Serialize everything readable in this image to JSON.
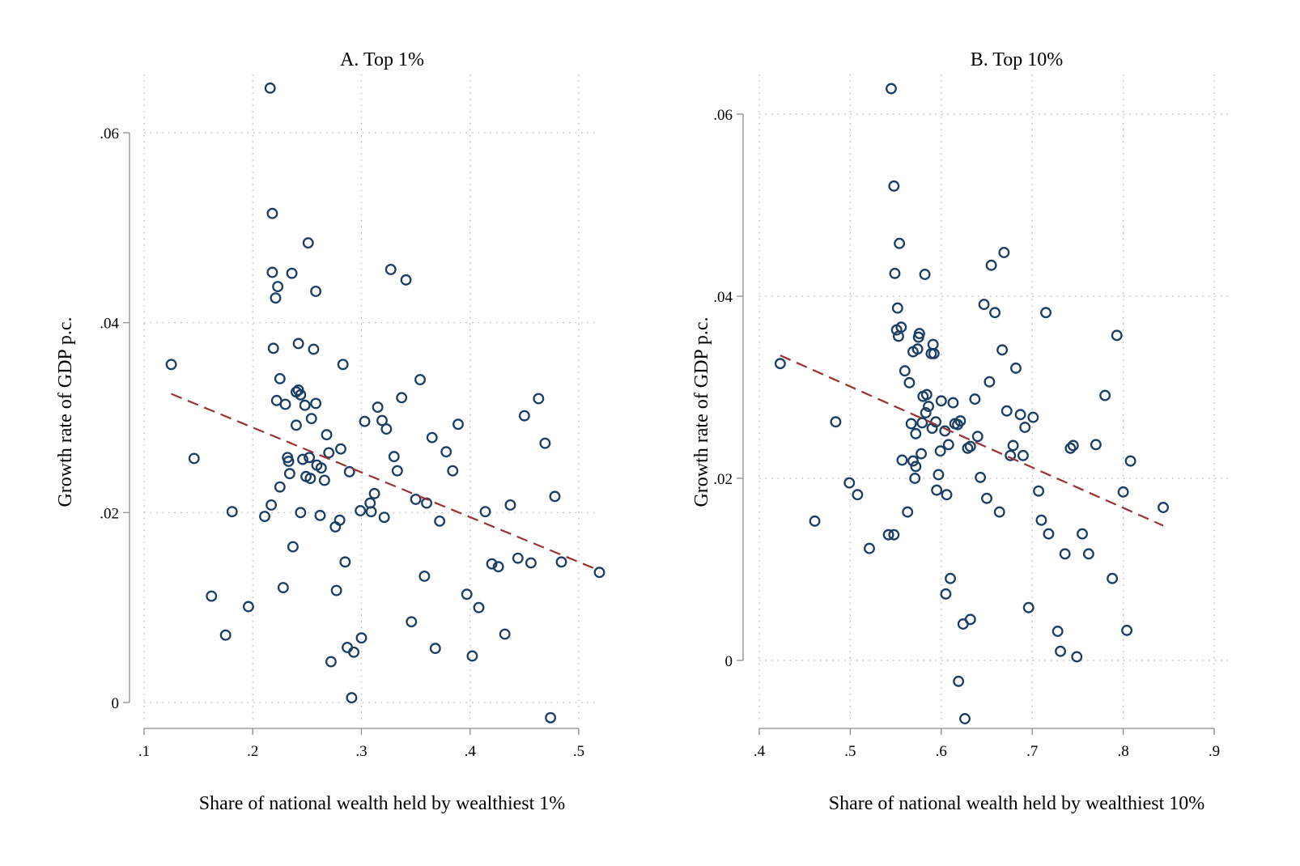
{
  "colors": {
    "points": "#1a3e66",
    "fit": "#9b3232"
  },
  "chart_data": [
    {
      "type": "scatter",
      "title": "A. Top 1%",
      "xlabel": "Share of national wealth held by wealthiest 1%",
      "ylabel": "Growth rate of GDP p.c.",
      "xlim": [
        0.1,
        0.5
      ],
      "ylim": [
        0,
        0.06
      ],
      "xticks": [
        0.1,
        0.2,
        0.3,
        0.4,
        0.5
      ],
      "xtick_labels": [
        ".1",
        ".2",
        ".3",
        ".4",
        ".5"
      ],
      "yticks": [
        0,
        0.02,
        0.04,
        0.06
      ],
      "ytick_labels": [
        "0",
        ".02",
        ".04",
        ".06"
      ],
      "grid": true,
      "fit_line": {
        "x": [
          0.125,
          0.519
        ],
        "y": [
          0.0325,
          0.0139
        ]
      },
      "points": [
        [
          0.216,
          0.0647
        ],
        [
          0.218,
          0.0515
        ],
        [
          0.251,
          0.0484
        ],
        [
          0.218,
          0.0453
        ],
        [
          0.236,
          0.0452
        ],
        [
          0.327,
          0.0456
        ],
        [
          0.341,
          0.0445
        ],
        [
          0.223,
          0.0438
        ],
        [
          0.258,
          0.0433
        ],
        [
          0.221,
          0.0426
        ],
        [
          0.125,
          0.0356
        ],
        [
          0.219,
          0.0373
        ],
        [
          0.242,
          0.0378
        ],
        [
          0.256,
          0.0372
        ],
        [
          0.283,
          0.0356
        ],
        [
          0.225,
          0.0341
        ],
        [
          0.354,
          0.034
        ],
        [
          0.24,
          0.0327
        ],
        [
          0.242,
          0.0329
        ],
        [
          0.244,
          0.0324
        ],
        [
          0.337,
          0.0321
        ],
        [
          0.222,
          0.0318
        ],
        [
          0.23,
          0.0314
        ],
        [
          0.248,
          0.0313
        ],
        [
          0.258,
          0.0315
        ],
        [
          0.463,
          0.032
        ],
        [
          0.315,
          0.0311
        ],
        [
          0.254,
          0.0299
        ],
        [
          0.319,
          0.0297
        ],
        [
          0.303,
          0.0296
        ],
        [
          0.24,
          0.0292
        ],
        [
          0.389,
          0.0293
        ],
        [
          0.323,
          0.0288
        ],
        [
          0.45,
          0.0302
        ],
        [
          0.268,
          0.0282
        ],
        [
          0.365,
          0.0279
        ],
        [
          0.469,
          0.0273
        ],
        [
          0.281,
          0.0267
        ],
        [
          0.378,
          0.0264
        ],
        [
          0.27,
          0.0263
        ],
        [
          0.146,
          0.0257
        ],
        [
          0.232,
          0.0258
        ],
        [
          0.252,
          0.0258
        ],
        [
          0.233,
          0.0254
        ],
        [
          0.246,
          0.0256
        ],
        [
          0.33,
          0.0259
        ],
        [
          0.259,
          0.025
        ],
        [
          0.263,
          0.0247
        ],
        [
          0.234,
          0.0241
        ],
        [
          0.249,
          0.0238
        ],
        [
          0.253,
          0.0236
        ],
        [
          0.266,
          0.0234
        ],
        [
          0.289,
          0.0243
        ],
        [
          0.333,
          0.0244
        ],
        [
          0.384,
          0.0244
        ],
        [
          0.225,
          0.0227
        ],
        [
          0.312,
          0.022
        ],
        [
          0.35,
          0.0214
        ],
        [
          0.308,
          0.021
        ],
        [
          0.36,
          0.021
        ],
        [
          0.217,
          0.0208
        ],
        [
          0.478,
          0.0217
        ],
        [
          0.437,
          0.0208
        ],
        [
          0.181,
          0.0201
        ],
        [
          0.211,
          0.0196
        ],
        [
          0.244,
          0.02
        ],
        [
          0.262,
          0.0197
        ],
        [
          0.299,
          0.0202
        ],
        [
          0.309,
          0.0201
        ],
        [
          0.321,
          0.0195
        ],
        [
          0.414,
          0.0201
        ],
        [
          0.28,
          0.0192
        ],
        [
          0.276,
          0.0185
        ],
        [
          0.372,
          0.0191
        ],
        [
          0.237,
          0.0164
        ],
        [
          0.285,
          0.0148
        ],
        [
          0.42,
          0.0146
        ],
        [
          0.426,
          0.0143
        ],
        [
          0.444,
          0.0152
        ],
        [
          0.456,
          0.0147
        ],
        [
          0.484,
          0.0148
        ],
        [
          0.519,
          0.0137
        ],
        [
          0.358,
          0.0133
        ],
        [
          0.228,
          0.0121
        ],
        [
          0.277,
          0.0118
        ],
        [
          0.162,
          0.0112
        ],
        [
          0.397,
          0.0114
        ],
        [
          0.196,
          0.0101
        ],
        [
          0.408,
          0.01
        ],
        [
          0.346,
          0.0085
        ],
        [
          0.175,
          0.0071
        ],
        [
          0.432,
          0.0072
        ],
        [
          0.3,
          0.0068
        ],
        [
          0.287,
          0.0058
        ],
        [
          0.368,
          0.0057
        ],
        [
          0.293,
          0.0053
        ],
        [
          0.402,
          0.0049
        ],
        [
          0.272,
          0.0043
        ],
        [
          0.291,
          0.0005
        ],
        [
          0.474,
          -0.0016
        ]
      ]
    },
    {
      "type": "scatter",
      "title": "B. Top 10%",
      "xlabel": "Share of national wealth held by wealthiest 10%",
      "ylabel": "Growth rate of GDP p.c.",
      "xlim": [
        0.4,
        0.9
      ],
      "ylim": [
        0,
        0.06
      ],
      "xticks": [
        0.4,
        0.5,
        0.6,
        0.7,
        0.8,
        0.9
      ],
      "xtick_labels": [
        ".4",
        ".5",
        ".6",
        ".7",
        ".8",
        ".9"
      ],
      "yticks": [
        0,
        0.02,
        0.04,
        0.06
      ],
      "ytick_labels": [
        "0",
        ".02",
        ".04",
        ".06"
      ],
      "grid": true,
      "fit_line": {
        "x": [
          0.423,
          0.844
        ],
        "y": [
          0.0335,
          0.0148
        ]
      },
      "points": [
        [
          0.545,
          0.0628
        ],
        [
          0.548,
          0.0521
        ],
        [
          0.554,
          0.0458
        ],
        [
          0.549,
          0.0425
        ],
        [
          0.582,
          0.0424
        ],
        [
          0.669,
          0.0448
        ],
        [
          0.655,
          0.0434
        ],
        [
          0.647,
          0.0391
        ],
        [
          0.659,
          0.0382
        ],
        [
          0.715,
          0.0382
        ],
        [
          0.552,
          0.0387
        ],
        [
          0.551,
          0.0363
        ],
        [
          0.556,
          0.0366
        ],
        [
          0.553,
          0.0356
        ],
        [
          0.576,
          0.0359
        ],
        [
          0.575,
          0.0355
        ],
        [
          0.793,
          0.0357
        ],
        [
          0.591,
          0.0347
        ],
        [
          0.574,
          0.0342
        ],
        [
          0.569,
          0.0339
        ],
        [
          0.589,
          0.0337
        ],
        [
          0.592,
          0.0337
        ],
        [
          0.667,
          0.0341
        ],
        [
          0.423,
          0.0326
        ],
        [
          0.56,
          0.0318
        ],
        [
          0.682,
          0.0321
        ],
        [
          0.565,
          0.0305
        ],
        [
          0.653,
          0.0306
        ],
        [
          0.58,
          0.029
        ],
        [
          0.584,
          0.0292
        ],
        [
          0.78,
          0.0291
        ],
        [
          0.6,
          0.0285
        ],
        [
          0.613,
          0.0283
        ],
        [
          0.637,
          0.0287
        ],
        [
          0.586,
          0.0279
        ],
        [
          0.672,
          0.0274
        ],
        [
          0.583,
          0.0272
        ],
        [
          0.687,
          0.027
        ],
        [
          0.701,
          0.0267
        ],
        [
          0.484,
          0.0262
        ],
        [
          0.567,
          0.026
        ],
        [
          0.579,
          0.0261
        ],
        [
          0.594,
          0.0262
        ],
        [
          0.615,
          0.026
        ],
        [
          0.618,
          0.0259
        ],
        [
          0.621,
          0.0263
        ],
        [
          0.692,
          0.0256
        ],
        [
          0.59,
          0.0255
        ],
        [
          0.604,
          0.0252
        ],
        [
          0.572,
          0.0249
        ],
        [
          0.64,
          0.0246
        ],
        [
          0.608,
          0.0237
        ],
        [
          0.632,
          0.0235
        ],
        [
          0.629,
          0.0233
        ],
        [
          0.679,
          0.0236
        ],
        [
          0.742,
          0.0233
        ],
        [
          0.745,
          0.0236
        ],
        [
          0.77,
          0.0237
        ],
        [
          0.599,
          0.023
        ],
        [
          0.578,
          0.0227
        ],
        [
          0.676,
          0.0225
        ],
        [
          0.69,
          0.0225
        ],
        [
          0.557,
          0.022
        ],
        [
          0.569,
          0.0219
        ],
        [
          0.572,
          0.0213
        ],
        [
          0.808,
          0.0219
        ],
        [
          0.597,
          0.0204
        ],
        [
          0.571,
          0.02
        ],
        [
          0.643,
          0.0201
        ],
        [
          0.499,
          0.0195
        ],
        [
          0.508,
          0.0182
        ],
        [
          0.595,
          0.0187
        ],
        [
          0.606,
          0.0182
        ],
        [
          0.65,
          0.0178
        ],
        [
          0.707,
          0.0186
        ],
        [
          0.8,
          0.0185
        ],
        [
          0.844,
          0.0168
        ],
        [
          0.563,
          0.0163
        ],
        [
          0.664,
          0.0163
        ],
        [
          0.461,
          0.0153
        ],
        [
          0.71,
          0.0154
        ],
        [
          0.542,
          0.0138
        ],
        [
          0.548,
          0.0138
        ],
        [
          0.718,
          0.0139
        ],
        [
          0.755,
          0.0139
        ],
        [
          0.521,
          0.0123
        ],
        [
          0.736,
          0.0117
        ],
        [
          0.762,
          0.0117
        ],
        [
          0.61,
          0.009
        ],
        [
          0.788,
          0.009
        ],
        [
          0.605,
          0.0073
        ],
        [
          0.696,
          0.0058
        ],
        [
          0.632,
          0.0045
        ],
        [
          0.624,
          0.004
        ],
        [
          0.728,
          0.0032
        ],
        [
          0.804,
          0.0033
        ],
        [
          0.731,
          0.001
        ],
        [
          0.749,
          0.0004
        ],
        [
          0.619,
          -0.0023
        ],
        [
          0.626,
          -0.0064
        ]
      ]
    }
  ]
}
